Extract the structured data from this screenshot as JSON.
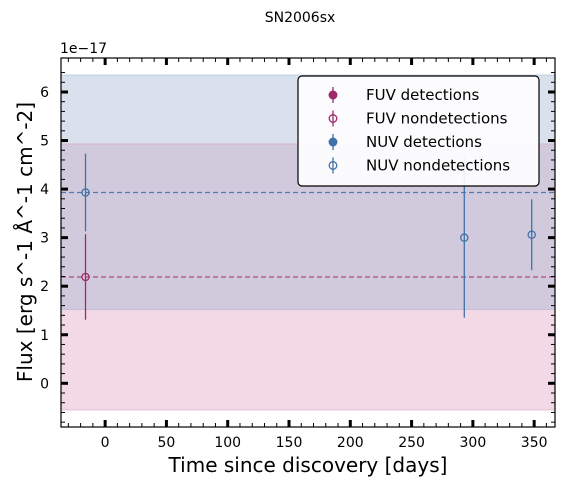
{
  "chart_data": {
    "type": "scatter",
    "title": "SN2006sx",
    "xlabel": "Time since discovery [days]",
    "ylabel": "Flux [erg s^-1 Å^-1 cm^-2]",
    "y_offset_label": "1e−17",
    "xlim": [
      -36,
      367
    ],
    "ylim": [
      -0.9,
      6.7
    ],
    "x_ticks": [
      0,
      50,
      100,
      150,
      200,
      250,
      300,
      350
    ],
    "y_ticks": [
      0,
      1,
      2,
      3,
      4,
      5,
      6
    ],
    "grid": false,
    "legend_position": "upper-right",
    "bands": [
      {
        "series": "FUV",
        "low": -0.55,
        "high": 4.93,
        "color": "#de9fbf"
      },
      {
        "series": "NUV",
        "low": 1.52,
        "high": 6.35,
        "color": "#9fb5d2"
      }
    ],
    "reference_lines": [
      {
        "series": "FUV",
        "y": 2.19,
        "color": "#b5467e"
      },
      {
        "series": "NUV",
        "y": 3.93,
        "color": "#4c7cb3"
      }
    ],
    "series": [
      {
        "name": "FUV detections",
        "marker": "filled",
        "color": "#9e2a6b",
        "points": []
      },
      {
        "name": "FUV nondetections",
        "marker": "open",
        "color": "#9e2a6b",
        "points": [
          {
            "x": -16,
            "y": 2.19,
            "err": 0.88
          }
        ]
      },
      {
        "name": "NUV detections",
        "marker": "filled",
        "color": "#3f72a8",
        "points": []
      },
      {
        "name": "NUV nondetections",
        "marker": "open",
        "color": "#3f72a8",
        "points": [
          {
            "x": -16,
            "y": 3.93,
            "err": 0.8
          },
          {
            "x": 293,
            "y": 3.0,
            "err": 1.65
          },
          {
            "x": 348,
            "y": 3.06,
            "err": 0.73
          }
        ]
      }
    ]
  }
}
